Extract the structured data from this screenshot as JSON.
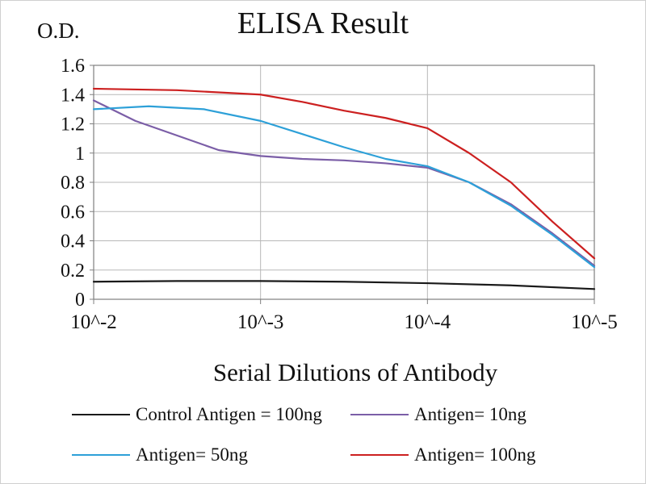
{
  "figure": {
    "od_label": "O.D."
  },
  "chart_data": {
    "type": "line",
    "title": "ELISA Result",
    "xlabel": "Serial Dilutions of Antibody",
    "ylabel": "O.D.",
    "x_scale": "log10_exponent",
    "x_range": [
      -2,
      -5
    ],
    "y_range": [
      0,
      1.6
    ],
    "x_tick_values": [
      -2,
      -3,
      -4,
      -5
    ],
    "x_tick_labels": [
      "10^-2",
      "10^-3",
      "10^-4",
      "10^-5"
    ],
    "y_tick_values": [
      0,
      0.2,
      0.4,
      0.6,
      0.8,
      1,
      1.2,
      1.4,
      1.6
    ],
    "y_tick_labels": [
      "0",
      "0.2",
      "0.4",
      "0.6",
      "0.8",
      "1",
      "1.2",
      "1.4",
      "1.6"
    ],
    "grid": "horizontal gridlines at each 0.2, vertical gridlines at each decade",
    "legend_position": "bottom",
    "colors": {
      "grid": "#b8b8b8",
      "axis": "#7f7f7f",
      "text": "#111111",
      "background": "#ffffff"
    },
    "series": [
      {
        "name": "Control Antigen = 100ng",
        "color": "#1a1a1a",
        "points": [
          [
            -2,
            0.12
          ],
          [
            -2.5,
            0.125
          ],
          [
            -3,
            0.125
          ],
          [
            -3.5,
            0.12
          ],
          [
            -4,
            0.11
          ],
          [
            -4.5,
            0.095
          ],
          [
            -5,
            0.07
          ]
        ]
      },
      {
        "name": "Antigen= 10ng",
        "color": "#7b5ea7",
        "points": [
          [
            -2,
            1.36
          ],
          [
            -2.25,
            1.22
          ],
          [
            -2.5,
            1.12
          ],
          [
            -2.75,
            1.02
          ],
          [
            -3,
            0.98
          ],
          [
            -3.25,
            0.96
          ],
          [
            -3.5,
            0.95
          ],
          [
            -3.75,
            0.93
          ],
          [
            -4,
            0.9
          ],
          [
            -4.25,
            0.8
          ],
          [
            -4.5,
            0.65
          ],
          [
            -4.75,
            0.45
          ],
          [
            -5,
            0.23
          ]
        ]
      },
      {
        "name": "Antigen= 50ng",
        "color": "#2da0d8",
        "points": [
          [
            -2,
            1.3
          ],
          [
            -2.33,
            1.32
          ],
          [
            -2.66,
            1.3
          ],
          [
            -3,
            1.22
          ],
          [
            -3.25,
            1.13
          ],
          [
            -3.5,
            1.04
          ],
          [
            -3.75,
            0.96
          ],
          [
            -4,
            0.91
          ],
          [
            -4.25,
            0.8
          ],
          [
            -4.5,
            0.64
          ],
          [
            -4.75,
            0.44
          ],
          [
            -5,
            0.22
          ]
        ]
      },
      {
        "name": "Antigen= 100ng",
        "color": "#cc2020",
        "points": [
          [
            -2,
            1.44
          ],
          [
            -2.5,
            1.43
          ],
          [
            -3,
            1.4
          ],
          [
            -3.25,
            1.35
          ],
          [
            -3.5,
            1.29
          ],
          [
            -3.75,
            1.24
          ],
          [
            -4,
            1.17
          ],
          [
            -4.25,
            1.0
          ],
          [
            -4.5,
            0.8
          ],
          [
            -4.75,
            0.53
          ],
          [
            -5,
            0.28
          ]
        ]
      }
    ]
  }
}
